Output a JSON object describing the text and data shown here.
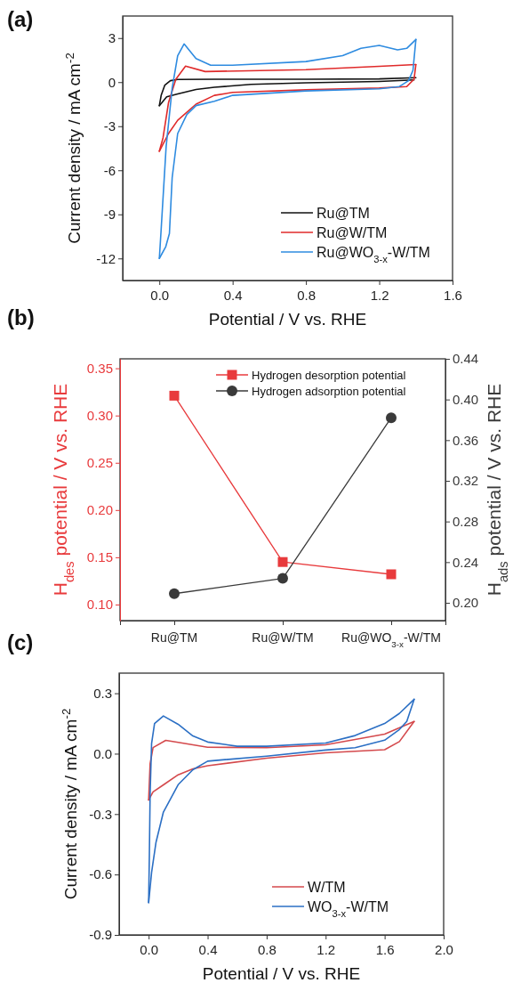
{
  "chart_data": [
    {
      "type": "line",
      "title": "(a)",
      "xlabel": "Potential / V vs. RHE",
      "ylabel": "Current density / mA cm$^{-2}$",
      "xlim": [
        -0.2,
        1.6
      ],
      "xticks": [
        {
          "value": 0,
          "label": "0.0"
        },
        {
          "value": 0.4,
          "label": "0.4"
        },
        {
          "value": 0.8,
          "label": "0.8"
        },
        {
          "value": 1.2,
          "label": "1.2"
        },
        {
          "value": 1.6,
          "label": "1.6"
        }
      ],
      "ylim": [
        -13.5,
        4.5
      ],
      "yticks": [
        -12,
        -9,
        -6,
        -3,
        0,
        3
      ],
      "legend": "bottom right",
      "grid": false,
      "series": [
        {
          "name": "Ru@TM",
          "color": "#111111",
          "x": [
            0,
            0.01,
            0.03,
            0.06,
            0.1,
            0.3,
            0.8,
            1.2,
            1.4
          ],
          "values": [
            -1.6,
            -0.9,
            -0.2,
            0.1,
            0.18,
            0.2,
            0.2,
            0.22,
            0.3
          ]
        },
        {
          "color": "#111111",
          "x": [
            0,
            0.04,
            0.1,
            0.2,
            0.3,
            0.5,
            0.8,
            1.2,
            1.39
          ],
          "values": [
            -1.6,
            -1.0,
            -0.8,
            -0.5,
            -0.35,
            -0.15,
            -0.05,
            0.05,
            0.15
          ]
        },
        {
          "name": "Ru@W/TM",
          "color": "#e02a2a",
          "x": [
            0,
            0.02,
            0.05,
            0.09,
            0.143,
            0.25,
            0.8,
            1.2,
            1.4
          ],
          "values": [
            -4.7,
            -3.8,
            -1.4,
            0.2,
            1.09,
            0.72,
            0.85,
            1.08,
            1.2
          ]
        },
        {
          "color": "#e02a2a",
          "x": [
            0,
            0.05,
            0.1,
            0.2,
            0.3,
            0.4,
            0.8,
            1.2,
            1.35,
            1.39,
            1.4
          ],
          "values": [
            -4.7,
            -3.5,
            -2.6,
            -1.5,
            -0.9,
            -0.7,
            -0.52,
            -0.4,
            -0.3,
            0.2,
            1.2
          ]
        },
        {
          "name": "Ru@WO$_{3-x}$-W/TM",
          "color": "#2e8be0",
          "x": [
            0,
            0.01,
            0.037,
            0.07,
            0.1,
            0.135,
            0.2,
            0.28,
            0.4,
            0.8,
            1.0,
            1.1,
            1.2,
            1.3,
            1.35,
            1.4
          ],
          "values": [
            -12,
            -10,
            -4.4,
            -0.4,
            1.8,
            2.6,
            1.6,
            1.15,
            1.15,
            1.4,
            1.8,
            2.3,
            2.5,
            2.2,
            2.3,
            2.9
          ]
        },
        {
          "color": "#2e8be0",
          "x": [
            0,
            0.035,
            0.055,
            0.07,
            0.1,
            0.15,
            0.2,
            0.3,
            0.4,
            0.8,
            1.2,
            1.31,
            1.36,
            1.384,
            1.4
          ],
          "values": [
            -12,
            -11.2,
            -10.3,
            -6.5,
            -3.5,
            -2.2,
            -1.6,
            -1.3,
            -0.9,
            -0.6,
            -0.45,
            -0.3,
            0.1,
            0.8,
            2.9
          ]
        }
      ]
    },
    {
      "type": "line",
      "title": "(b)",
      "ylabel": "H$_{des}$ potential / V vs. RHE",
      "y2label": "H$_{ads}$ potential / V vs. RHE",
      "categories": [
        "Ru@TM",
        "Ru@W/TM",
        "Ru@WO$_{3-x}$-W/TM"
      ],
      "ylim": [
        0.083,
        0.36
      ],
      "yticks": [
        {
          "value": 0.1,
          "label": "0.10"
        },
        {
          "value": 0.15,
          "label": "0.15"
        },
        {
          "value": 0.2,
          "label": "0.20"
        },
        {
          "value": 0.25,
          "label": "0.25"
        },
        {
          "value": 0.3,
          "label": "0.30"
        },
        {
          "value": 0.35,
          "label": "0.35"
        }
      ],
      "y2lim": [
        0.1825,
        0.44
      ],
      "y2ticks": [
        {
          "value": 0.2,
          "label": "0.20"
        },
        {
          "value": 0.24,
          "label": "0.24"
        },
        {
          "value": 0.28,
          "label": "0.28"
        },
        {
          "value": 0.32,
          "label": "0.32"
        },
        {
          "value": 0.36,
          "label": "0.36"
        },
        {
          "value": 0.4,
          "label": "0.40"
        },
        {
          "value": 0.44,
          "label": "0.44"
        }
      ],
      "legend": "top right",
      "grid": false,
      "series": [
        {
          "name": "Hydrogen desorption potential",
          "color": "#e83a3c",
          "marker": "square",
          "values": [
            0.321,
            0.145,
            0.132
          ]
        },
        {
          "name": "Hydrogen adsorption potential",
          "color": "#3a3a3a",
          "marker": "circle",
          "axis": "y2",
          "values": [
            0.209,
            0.224,
            0.382
          ]
        }
      ]
    },
    {
      "type": "line",
      "title": "(c)",
      "xlabel": "Potential / V vs. RHE",
      "ylabel": "Current density / mA cm$^{-2}$",
      "xlim": [
        -0.2,
        2.0
      ],
      "xticks": [
        {
          "value": 0,
          "label": "0.0"
        },
        {
          "value": 0.4,
          "label": "0.4"
        },
        {
          "value": 0.8,
          "label": "0.8"
        },
        {
          "value": 1.2,
          "label": "1.2"
        },
        {
          "value": 1.6,
          "label": "1.6"
        },
        {
          "value": 2.0,
          "label": "2.0"
        }
      ],
      "ylim": [
        -0.9,
        0.4
      ],
      "yticks": [
        -0.9,
        -0.6,
        -0.3,
        {
          "value": 0,
          "label": "0.0"
        },
        0.3
      ],
      "legend": "bottom right",
      "grid": false,
      "series": [
        {
          "name": "W/TM",
          "color": "#d4494c",
          "x": [
            0,
            0.01,
            0.03,
            0.116,
            0.2,
            0.4,
            0.8,
            1.2,
            1.6,
            1.8
          ],
          "values": [
            -0.23,
            -0.05,
            0.03,
            0.066,
            0.056,
            0.032,
            0.03,
            0.044,
            0.097,
            0.16
          ]
        },
        {
          "color": "#d4494c",
          "x": [
            0,
            0.03,
            0.1,
            0.2,
            0.3,
            0.4,
            0.8,
            1.2,
            1.6,
            1.7,
            1.8
          ],
          "values": [
            -0.23,
            -0.19,
            -0.155,
            -0.105,
            -0.075,
            -0.06,
            -0.022,
            0.004,
            0.02,
            0.06,
            0.16
          ]
        },
        {
          "name": "WO$_{3-x}$-W/TM",
          "color": "#2b6fc4",
          "x": [
            0,
            0.005,
            0.01,
            0.02,
            0.04,
            0.1,
            0.2,
            0.3,
            0.4,
            0.6,
            0.8,
            1.2,
            1.4,
            1.6,
            1.7,
            1.8
          ],
          "values": [
            -0.74,
            -0.5,
            -0.2,
            0.05,
            0.15,
            0.187,
            0.146,
            0.088,
            0.058,
            0.037,
            0.037,
            0.053,
            0.09,
            0.15,
            0.2,
            0.27
          ]
        },
        {
          "color": "#2b6fc4",
          "x": [
            0,
            0.02,
            0.05,
            0.1,
            0.2,
            0.3,
            0.4,
            0.8,
            1.2,
            1.4,
            1.6,
            1.7,
            1.75,
            1.8
          ],
          "values": [
            -0.74,
            -0.59,
            -0.44,
            -0.29,
            -0.154,
            -0.08,
            -0.037,
            -0.012,
            0.018,
            0.03,
            0.067,
            0.12,
            0.16,
            0.27
          ]
        }
      ]
    }
  ]
}
